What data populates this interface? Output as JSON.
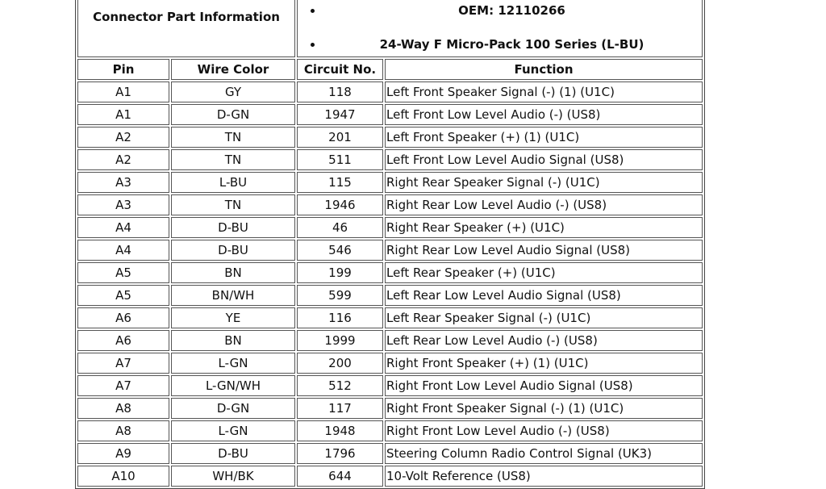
{
  "connector_info": {
    "label": "Connector Part Information",
    "items": [
      "OEM: 12110266",
      "24-Way F Micro-Pack 100 Series (L-BU)"
    ]
  },
  "headers": [
    "Pin",
    "Wire Color",
    "Circuit No.",
    "Function"
  ],
  "rows": [
    [
      "A1",
      "GY",
      "118",
      "Left Front Speaker Signal (-) (1) (U1C)"
    ],
    [
      "A1",
      "D-GN",
      "1947",
      "Left Front Low Level Audio (-) (US8)"
    ],
    [
      "A2",
      "TN",
      "201",
      "Left Front Speaker (+) (1) (U1C)"
    ],
    [
      "A2",
      "TN",
      "511",
      "Left Front Low Level Audio Signal (US8)"
    ],
    [
      "A3",
      "L-BU",
      "115",
      "Right Rear Speaker Signal (-) (U1C)"
    ],
    [
      "A3",
      "TN",
      "1946",
      "Right Rear Low Level Audio (-) (US8)"
    ],
    [
      "A4",
      "D-BU",
      "46",
      "Right Rear Speaker (+) (U1C)"
    ],
    [
      "A4",
      "D-BU",
      "546",
      "Right Rear Low Level Audio Signal (US8)"
    ],
    [
      "A5",
      "BN",
      "199",
      "Left Rear Speaker (+) (U1C)"
    ],
    [
      "A5",
      "BN/WH",
      "599",
      "Left Rear Low Level Audio Signal (US8)"
    ],
    [
      "A6",
      "YE",
      "116",
      "Left Rear Speaker Signal (-) (U1C)"
    ],
    [
      "A6",
      "BN",
      "1999",
      "Left Rear Low Level Audio (-) (US8)"
    ],
    [
      "A7",
      "L-GN",
      "200",
      "Right Front Speaker (+) (1) (U1C)"
    ],
    [
      "A7",
      "L-GN/WH",
      "512",
      "Right Front Low Level Audio Signal (US8)"
    ],
    [
      "A8",
      "D-GN",
      "117",
      "Right Front Speaker Signal (-) (1) (U1C)"
    ],
    [
      "A8",
      "L-GN",
      "1948",
      "Right Front Low Level Audio (-) (US8)"
    ],
    [
      "A9",
      "D-BU",
      "1796",
      "Steering Column Radio Control Signal (UK3)"
    ],
    [
      "A10",
      "WH/BK",
      "644",
      "10-Volt Reference (US8)"
    ]
  ]
}
